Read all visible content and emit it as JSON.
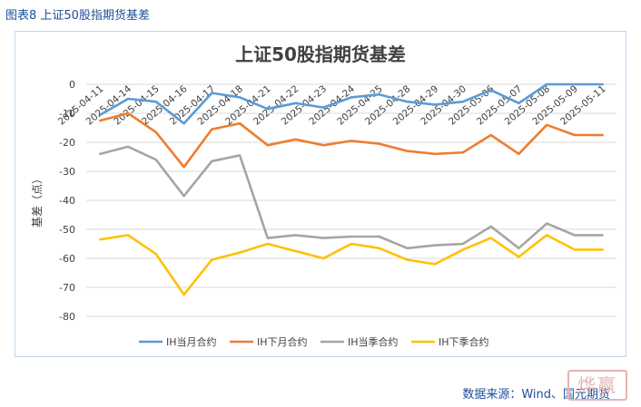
{
  "figure_caption": "图表8 上证50股指期货基差",
  "source_note": "数据来源：Wind、国元期货",
  "stamp_text": "烨赢",
  "chart_data": {
    "type": "line",
    "title": "上证50股指期货基差",
    "ylabel": "基差（点）",
    "xlabel": "",
    "ylim": [
      -80,
      0
    ],
    "yticks": [
      0,
      -10,
      -20,
      -30,
      -40,
      -50,
      -60,
      -70,
      -80
    ],
    "grid": true,
    "legend": "bottom",
    "categories": [
      "2025-04-11",
      "2025-04-14",
      "2025-04-15",
      "2025-04-16",
      "2025-04-17",
      "2025-04-18",
      "2025-04-21",
      "2025-04-22",
      "2025-04-23",
      "2025-04-24",
      "2025-04-25",
      "2025-04-28",
      "2025-04-29",
      "2025-04-30",
      "2025-05-06",
      "2025-05-07",
      "2025-05-08",
      "2025-05-09",
      "2025-05-11"
    ],
    "series": [
      {
        "name": "IH当月合约",
        "color": "#5b9bd5",
        "values": [
          -10.5,
          -5,
          -6,
          -13.5,
          -3,
          -4.5,
          -8.5,
          -6.5,
          -8,
          -4.5,
          -3.5,
          -6,
          -7,
          -6,
          -2,
          -6.5,
          0,
          0,
          0
        ]
      },
      {
        "name": "IH下月合约",
        "color": "#ed7d31",
        "values": [
          -12.5,
          -10,
          -16.5,
          -28.5,
          -15.5,
          -13.5,
          -21,
          -19,
          -21,
          -19.5,
          -20.5,
          -23,
          -24,
          -23.5,
          -17.5,
          -24,
          -14,
          -17.5,
          -17.5
        ]
      },
      {
        "name": "IH当季合约",
        "color": "#a5a5a5",
        "values": [
          -24,
          -21.5,
          -26,
          -38.5,
          -26.5,
          -24.5,
          -53,
          -52,
          -53,
          -52.5,
          -52.5,
          -56.5,
          -55.5,
          -55,
          -49,
          -56.5,
          -48,
          -52,
          -52
        ]
      },
      {
        "name": "IH下季合约",
        "color": "#ffc000",
        "values": [
          -53.5,
          -52,
          -58.5,
          -72.5,
          -60.5,
          -58,
          -55,
          -57.5,
          -60,
          -55,
          -56.5,
          -60.5,
          -62,
          -57,
          -53,
          -59.5,
          -52,
          -57,
          -57
        ]
      }
    ]
  }
}
